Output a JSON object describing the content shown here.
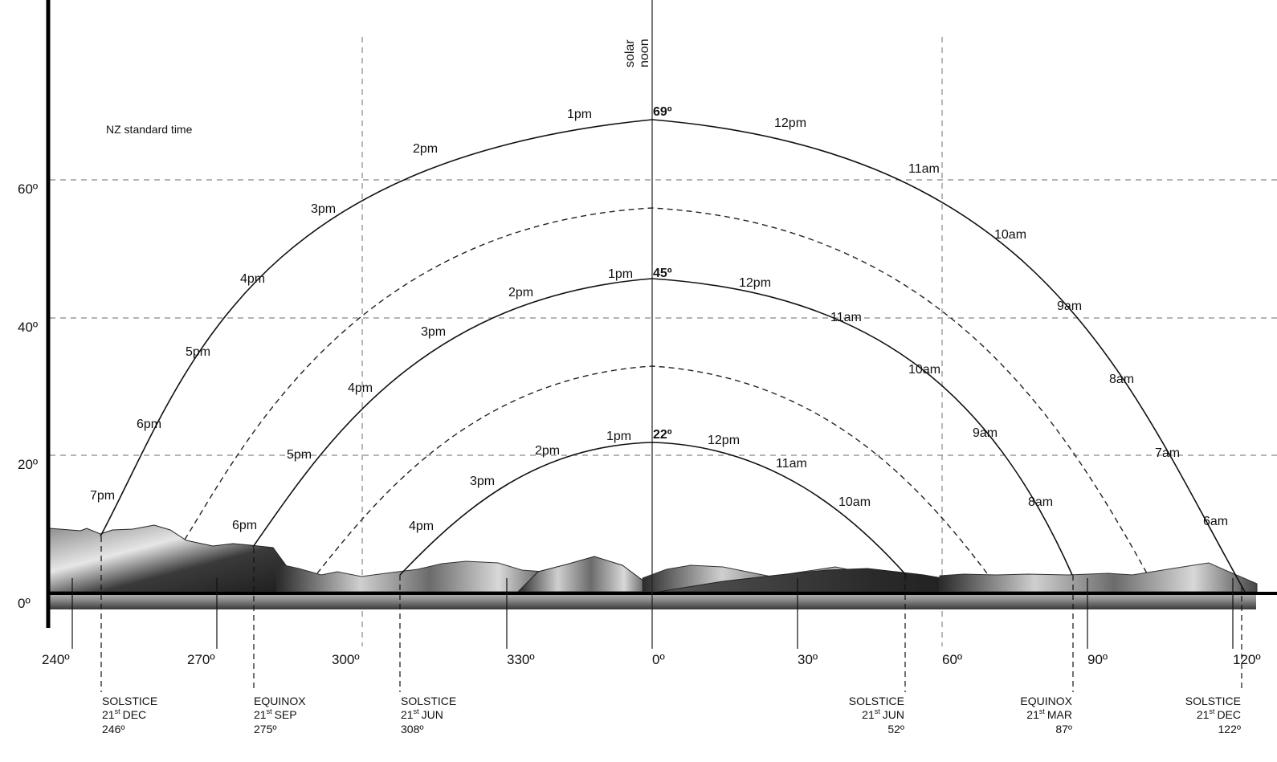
{
  "note": "NZ standard time",
  "solar_noon_label": [
    "solar",
    "noon"
  ],
  "altitude_ticks": [
    "0º",
    "20º",
    "40º",
    "60º"
  ],
  "azimuth_ticks": [
    "240º",
    "270º",
    "300º",
    "330º",
    "0º",
    "30º",
    "60º",
    "90º",
    "120º"
  ],
  "paths": [
    {
      "id": "dec-solstice",
      "peak_label": "69º",
      "hours": [
        {
          "label": "7pm"
        },
        {
          "label": "6pm"
        },
        {
          "label": "5pm"
        },
        {
          "label": "4pm"
        },
        {
          "label": "3pm"
        },
        {
          "label": "2pm"
        },
        {
          "label": "1pm"
        },
        {
          "label": "12pm"
        },
        {
          "label": "11am"
        },
        {
          "label": "10am"
        },
        {
          "label": "9am"
        },
        {
          "label": "8am"
        },
        {
          "label": "7am"
        },
        {
          "label": "6am"
        }
      ]
    },
    {
      "id": "equinox",
      "peak_label": "45º",
      "hours": [
        {
          "label": "6pm"
        },
        {
          "label": "5pm"
        },
        {
          "label": "4pm"
        },
        {
          "label": "3pm"
        },
        {
          "label": "2pm"
        },
        {
          "label": "1pm"
        },
        {
          "label": "12pm"
        },
        {
          "label": "11am"
        },
        {
          "label": "10am"
        },
        {
          "label": "9am"
        },
        {
          "label": "8am"
        }
      ]
    },
    {
      "id": "jun-solstice",
      "peak_label": "22º",
      "hours": [
        {
          "label": "4pm"
        },
        {
          "label": "3pm"
        },
        {
          "label": "2pm"
        },
        {
          "label": "1pm"
        },
        {
          "label": "12pm"
        },
        {
          "label": "11am"
        },
        {
          "label": "10am"
        }
      ]
    }
  ],
  "events": [
    {
      "name": "SOLSTICE",
      "day": "21",
      "sup": "st",
      "month": "DEC",
      "azimuth": "246º"
    },
    {
      "name": "EQUINOX",
      "day": "21",
      "sup": "st",
      "month": "SEP",
      "azimuth": "275º"
    },
    {
      "name": "SOLSTICE",
      "day": "21",
      "sup": "st",
      "month": "JUN",
      "azimuth": "308º"
    },
    {
      "name": "SOLSTICE",
      "day": "21",
      "sup": "st",
      "month": "JUN",
      "azimuth": "52º"
    },
    {
      "name": "EQUINOX",
      "day": "21",
      "sup": "st",
      "month": "MAR",
      "azimuth": "87º"
    },
    {
      "name": "SOLSTICE",
      "day": "21",
      "sup": "st",
      "month": "DEC",
      "azimuth": "122º"
    }
  ]
}
